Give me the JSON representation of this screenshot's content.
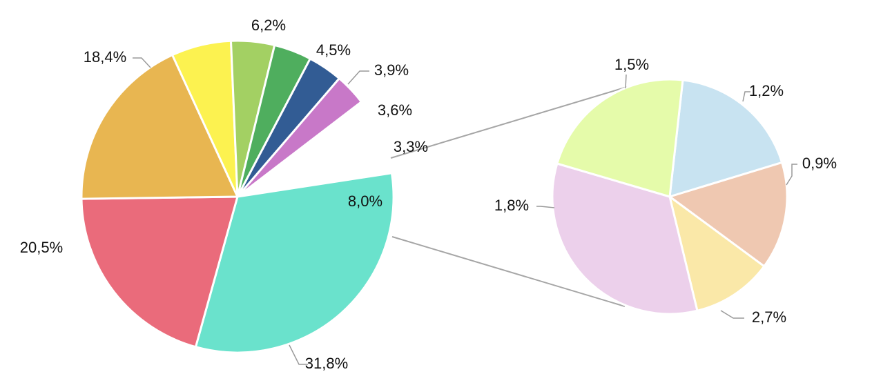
{
  "chart_data": {
    "type": "pie",
    "subtype": "pie-of-pie",
    "main_pie": {
      "slices": [
        {
          "value": 31.8,
          "label": "31,8%",
          "color": "#6ae2cc"
        },
        {
          "value": 20.5,
          "label": "20,5%",
          "color": "#ea6b7b"
        },
        {
          "value": 18.4,
          "label": "18,4%",
          "color": "#e8b651"
        },
        {
          "value": 6.2,
          "label": "6,2%",
          "color": "#fcf250"
        },
        {
          "value": 4.5,
          "label": "4,5%",
          "color": "#a3d063"
        },
        {
          "value": 3.9,
          "label": "3,9%",
          "color": "#4fae5e"
        },
        {
          "value": 3.6,
          "label": "3,6%",
          "color": "#325c94"
        },
        {
          "value": 3.3,
          "label": "3,3%",
          "color": "#c878c8"
        },
        {
          "value": 8.0,
          "label": "8,0%",
          "color": "#ffffff",
          "is_other": true
        }
      ]
    },
    "secondary_pie": {
      "slices": [
        {
          "value": 1.5,
          "label": "1,5%",
          "color": "#c8e3f1"
        },
        {
          "value": 1.2,
          "label": "1,2%",
          "color": "#efc8b1"
        },
        {
          "value": 0.9,
          "label": "0,9%",
          "color": "#fae8a8"
        },
        {
          "value": 2.7,
          "label": "2,7%",
          "color": "#ecd0eb"
        },
        {
          "value": 1.8,
          "label": "1,8%",
          "color": "#e5fbaa"
        }
      ]
    },
    "connector_color": "#a6a6a6",
    "leader_color": "#999999"
  }
}
